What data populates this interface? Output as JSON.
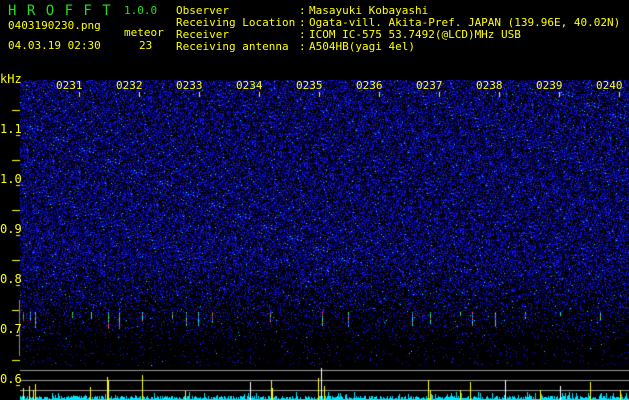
{
  "app": {
    "name": "H R O F F T",
    "version": "1.0.0"
  },
  "file": {
    "name": "0403190230.png",
    "datetime": "04.03.19 02:30"
  },
  "meteor": {
    "label": "meteor",
    "count": "23"
  },
  "info": [
    {
      "label": "Observer",
      "value": "Masayuki Kobayashi"
    },
    {
      "label": "Receiving Location",
      "value": "Ogata-vill. Akita-Pref. JAPAN (139.96E, 40.02N)"
    },
    {
      "label": "Receiver",
      "value": "ICOM IC-575 53.7492(@LCD)MHz USB"
    },
    {
      "label": "Receiving antenna",
      "value": "A504HB(yagi 4el)"
    }
  ],
  "spectrogram": {
    "unit": "kHz",
    "y_ticks": [
      "1.1",
      "1.0",
      "0.9",
      "0.8",
      "0.7",
      "0.6"
    ],
    "time_labels": [
      "0231",
      "0232",
      "0233",
      "0234",
      "0235",
      "0236",
      "0237",
      "0238",
      "0239",
      "0240"
    ],
    "colors": {
      "text": "#ffff00",
      "logo": "#22dd22",
      "noise": "#1010c0",
      "level": "#00e5ff",
      "peak": "#ffff00"
    }
  }
}
